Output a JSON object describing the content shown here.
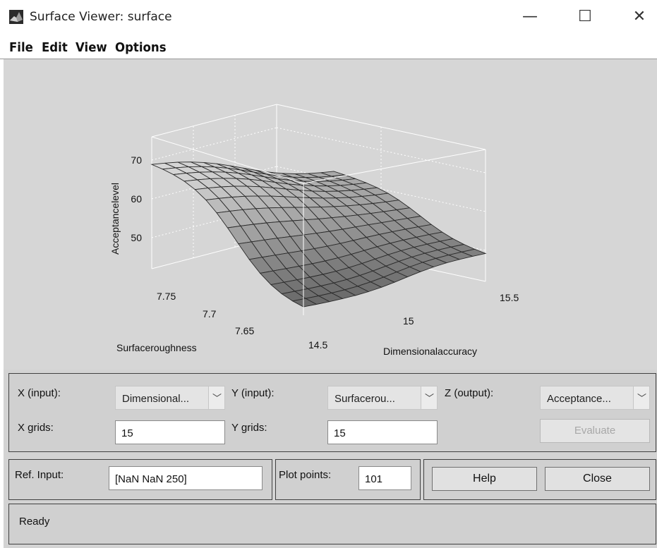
{
  "window": {
    "title": "Surface Viewer: surface",
    "minimize_glyph": "—",
    "maximize_glyph": "☐",
    "close_glyph": "✕",
    "icon": "matlab-peaks-icon"
  },
  "menu": {
    "items": [
      "File",
      "Edit",
      "View",
      "Options"
    ]
  },
  "plot": {
    "z_label": "Acceptancelevel",
    "x_label": "Dimensionalaccuracy",
    "y_label": "Surfaceroughness",
    "z_ticks": [
      "50",
      "60",
      "70"
    ],
    "x_ticks": [
      "14.5",
      "15",
      "15.5"
    ],
    "y_ticks": [
      "7.65",
      "7.7",
      "7.75"
    ]
  },
  "chart_data": {
    "type": "surface",
    "title": "",
    "xlabel": "Dimensionalaccuracy",
    "ylabel": "Surfaceroughness",
    "zlabel": "Acceptancelevel",
    "xlim": [
      14.5,
      15.5
    ],
    "ylim": [
      7.6,
      7.8
    ],
    "zlim": [
      45,
      75
    ],
    "x_ticks": [
      14.5,
      15,
      15.5
    ],
    "y_ticks": [
      7.65,
      7.7,
      7.75
    ],
    "z_ticks": [
      50,
      60,
      70
    ],
    "grid": true,
    "grid_size": 15
  },
  "controls": {
    "x_input_label": "X (input):",
    "x_input_value": "Dimensional...",
    "y_input_label": "Y (input):",
    "y_input_value": "Surfacerou...",
    "z_output_label": "Z (output):",
    "z_output_value": "Acceptance...",
    "x_grids_label": "X grids:",
    "x_grids_value": "15",
    "y_grids_label": "Y grids:",
    "y_grids_value": "15",
    "evaluate_label": "Evaluate",
    "ref_input_label": "Ref. Input:",
    "ref_input_value": "[NaN NaN 250]",
    "plot_points_label": "Plot points:",
    "plot_points_value": "101",
    "help_label": "Help",
    "close_label": "Close",
    "dropdown_glyph": "﹀"
  },
  "status": {
    "text": "Ready"
  }
}
